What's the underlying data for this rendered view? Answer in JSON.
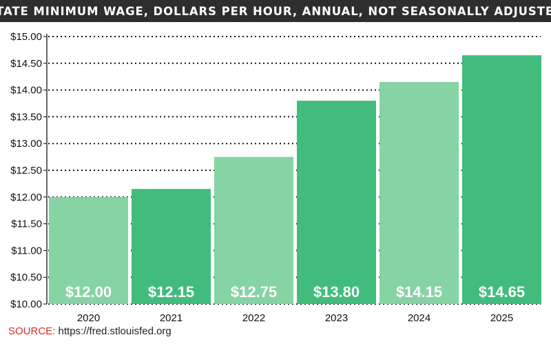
{
  "header": {
    "title": "STATE MINIMUM WAGE, DOLLARS PER HOUR, ANNUAL, NOT SEASONALLY ADJUSTED"
  },
  "chart_data": {
    "type": "bar",
    "title": "STATE MINIMUM WAGE, DOLLARS PER HOUR, ANNUAL, NOT SEASONALLY ADJUSTED",
    "categories": [
      "2020",
      "2021",
      "2022",
      "2023",
      "2024",
      "2025"
    ],
    "values": [
      12.0,
      12.15,
      12.75,
      13.8,
      14.15,
      14.65
    ],
    "value_labels": [
      "$12.00",
      "$12.15",
      "$12.75",
      "$13.80",
      "$14.15",
      "$14.65"
    ],
    "ylim": [
      10.0,
      15.0
    ],
    "y_ticks": [
      {
        "value": 10.0,
        "label": "$10.00"
      },
      {
        "value": 10.5,
        "label": "$10.50"
      },
      {
        "value": 11.0,
        "label": "$11.00"
      },
      {
        "value": 11.5,
        "label": "$11.50"
      },
      {
        "value": 12.0,
        "label": "$12.00"
      },
      {
        "value": 12.5,
        "label": "$12.50"
      },
      {
        "value": 13.0,
        "label": "$13.00"
      },
      {
        "value": 13.5,
        "label": "$13.50"
      },
      {
        "value": 14.0,
        "label": "$14.00"
      },
      {
        "value": 14.5,
        "label": "$14.50"
      },
      {
        "value": 15.0,
        "label": "$15.00"
      }
    ],
    "grid": true,
    "grid_style": "dotted",
    "bar_colors": [
      "#86d3a4",
      "#41bc7d"
    ]
  },
  "footer": {
    "source_label": "SOURCE:",
    "source_text": "https://fred.stlouisfed.org"
  }
}
